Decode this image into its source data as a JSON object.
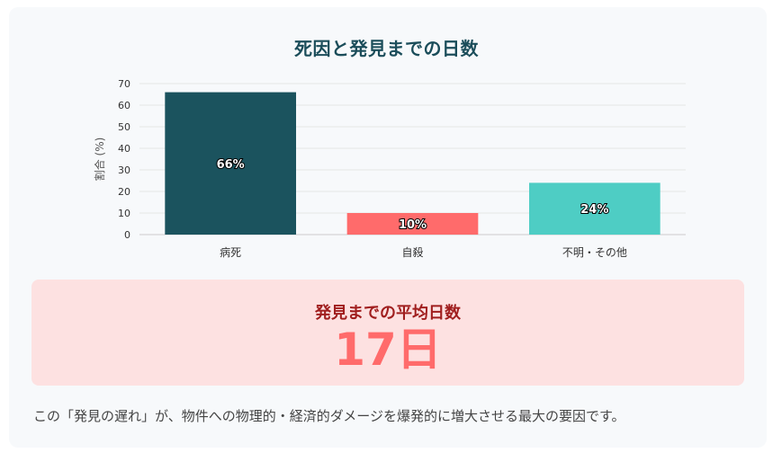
{
  "chart_data": {
    "type": "bar",
    "title": "死因と発見までの日数",
    "ylabel": "割合 (%)",
    "xlabel": "",
    "categories": [
      "病死",
      "自殺",
      "不明・その他"
    ],
    "values": [
      66,
      10,
      24
    ],
    "data_labels": [
      "66%",
      "10%",
      "24%"
    ],
    "colors": [
      "#1b535e",
      "#ff6b6b",
      "#4ecdc4"
    ],
    "ylim": [
      0,
      70
    ],
    "yticks": [
      0,
      10,
      20,
      30,
      40,
      50,
      60,
      70
    ],
    "grid": true,
    "legend": "none"
  },
  "stat": {
    "label": "発見までの平均日数",
    "value": "17日"
  },
  "footnote": "この「発見の遅れ」が、物件への物理的・経済的ダメージを爆発的に増大させる最大の要因です。"
}
